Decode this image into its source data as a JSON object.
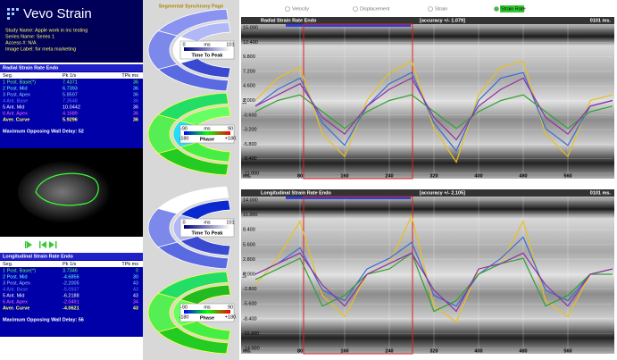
{
  "logo": "Vevo Strain",
  "study_info": [
    "Study Name: Apple work in inc testing",
    "Series Name: Series 1",
    "Access #: N/A",
    "Image Label: for meta marketing"
  ],
  "tables": [
    {
      "title": "Radial Strain Rate Endo",
      "header": [
        "Seg.",
        "Pk 1/s",
        "TPk ms"
      ],
      "rows": [
        [
          "1 Post. Base(*)",
          7.4371,
          36
        ],
        [
          "2 Post. Mid",
          6.7393,
          36
        ],
        [
          "3 Post. Apex",
          5.8597,
          36
        ],
        [
          "4 Ant. Base",
          7.3548,
          36
        ],
        [
          "5 Ant. Mid",
          10.0442,
          36
        ],
        [
          "6 Ant. Apex",
          4.1689,
          36
        ],
        [
          "Aver. Curve",
          5.9296,
          36
        ]
      ],
      "row_colors": [
        "#66ff66",
        "#66ffff",
        "#99ccff",
        "#6677ff",
        "#ffffff",
        "#ff66ff",
        "#ffff66"
      ],
      "footer": "Maximum Opposing Wall Delay: 52"
    },
    {
      "title": "Longitudinal Strain Rate Endo",
      "header": [
        "Seg.",
        "Pk 1/s",
        "TPk ms"
      ],
      "rows": [
        [
          "1 Post. Base(*)",
          3.7346,
          0
        ],
        [
          "2 Post. Mid",
          -4.6856,
          30
        ],
        [
          "3 Post. Apex",
          -2.2005,
          43
        ],
        [
          "4 Ant. Base",
          -5.0937,
          43
        ],
        [
          "5 Ant. Mid",
          -6.2188,
          43
        ],
        [
          "6 Ant. Apex",
          -2.0491,
          34
        ],
        [
          "Aver. Curve",
          -4.0621,
          43
        ]
      ],
      "row_colors": [
        "#66ff66",
        "#66ffff",
        "#99ccff",
        "#6677ff",
        "#ffffff",
        "#ff66ff",
        "#ffff66"
      ],
      "footer": "Maximum Opposing Wall Delay: 56"
    }
  ],
  "synchrony": {
    "title": "Segmental Synchrony Page",
    "diagrams": [
      {
        "scale": [
          "0",
          "ms",
          "101"
        ],
        "caption": "Time To Peak"
      },
      {
        "scale": [
          "-90",
          "ms",
          "90"
        ],
        "scale_bottom": [
          "-180",
          "+180"
        ],
        "caption": "Phase"
      },
      {
        "scale": [
          "0",
          "ms",
          "101"
        ],
        "caption": "Time To Peak"
      },
      {
        "scale": [
          "-90",
          "ms",
          "90"
        ],
        "scale_bottom": [
          "-180",
          "+180"
        ],
        "caption": "Phase"
      }
    ]
  },
  "mode_options": [
    "Velocity",
    "Displacement",
    "Strain",
    "Strain Rate"
  ],
  "selected_mode": 3,
  "plots": [
    {
      "title": "Radial Strain Rate Endo",
      "accuracy": "[accuracy +/- 1.079]",
      "time": "0101 ms.",
      "y_unit": "1/s",
      "x_unit": "ms.",
      "xlim": [
        0,
        640
      ],
      "xticks": [
        80,
        160,
        240,
        320,
        400,
        480,
        560
      ],
      "ylim": [
        -11,
        15
      ],
      "yticks": [
        {
          "value": 15,
          "label": "15.000"
        },
        {
          "value": 12.4,
          "label": "12.400"
        },
        {
          "value": 9.8,
          "label": "9.800"
        },
        {
          "value": 7.2,
          "label": "7.200"
        },
        {
          "value": 4.6,
          "label": "4.600"
        },
        {
          "value": 2,
          "label": "2.000"
        },
        {
          "value": -0.6,
          "label": "-0.600"
        },
        {
          "value": -3.2,
          "label": "-3.200"
        },
        {
          "value": -5.8,
          "label": "-5.800"
        },
        {
          "value": -8.4,
          "label": "-8.400"
        },
        {
          "value": -11,
          "label": "-11.000"
        }
      ],
      "x": [
        0,
        40,
        80,
        120,
        160,
        200,
        240,
        280,
        320,
        360,
        400,
        440,
        480,
        520,
        560,
        600,
        640
      ],
      "series": [
        {
          "color": "#e8c020",
          "values": [
            2,
            6,
            8,
            -4,
            -8,
            2,
            7,
            9,
            -3,
            -9,
            3,
            8,
            9,
            -4,
            -8,
            2,
            3
          ]
        },
        {
          "color": "#3a6ad8",
          "values": [
            1,
            4,
            6,
            -2,
            -6,
            1,
            5,
            7,
            -2,
            -7,
            2,
            6,
            7,
            -3,
            -6,
            1,
            2
          ]
        },
        {
          "color": "#30a030",
          "values": [
            0,
            2,
            3,
            0,
            -3,
            0,
            2,
            3,
            0,
            -3,
            0,
            2,
            3,
            0,
            -3,
            0,
            1
          ]
        },
        {
          "color": "#9030a0",
          "values": [
            1,
            3,
            5,
            -1,
            -4,
            1,
            4,
            6,
            -1,
            -5,
            1,
            4,
            6,
            -1,
            -4,
            1,
            2
          ]
        }
      ]
    },
    {
      "title": "Longitudinal Strain Rate Endo",
      "accuracy": "[accuracy +/- 2.105]",
      "time": "0101 ms.",
      "y_unit": "1/s",
      "x_unit": "ms.",
      "xlim": [
        0,
        640
      ],
      "xticks": [
        80,
        160,
        240,
        320,
        400,
        480,
        560
      ],
      "ylim": [
        -14,
        14
      ],
      "yticks": [
        {
          "value": 14,
          "label": "14.000"
        },
        {
          "value": 11.2,
          "label": "11.200"
        },
        {
          "value": 8.4,
          "label": "8.400"
        },
        {
          "value": 5.6,
          "label": "5.600"
        },
        {
          "value": 2.8,
          "label": "2.800"
        },
        {
          "value": 0,
          "label": "0.000"
        },
        {
          "value": -2.8,
          "label": "-2.800"
        },
        {
          "value": -5.6,
          "label": "-5.600"
        },
        {
          "value": -8.4,
          "label": "-8.400"
        },
        {
          "value": -11.2,
          "label": "-11.200"
        },
        {
          "value": -14,
          "label": "-14.000"
        }
      ],
      "x": [
        0,
        40,
        80,
        120,
        160,
        200,
        240,
        280,
        320,
        360,
        400,
        440,
        480,
        520,
        560,
        600,
        640
      ],
      "series": [
        {
          "color": "#e8c020",
          "values": [
            -2,
            3,
            10,
            -4,
            -8,
            0,
            2,
            11,
            -6,
            -9,
            1,
            2,
            10,
            -5,
            -8,
            0,
            1
          ]
        },
        {
          "color": "#3a6ad8",
          "values": [
            0,
            2,
            5,
            -3,
            -5,
            1,
            3,
            6,
            -4,
            -6,
            0,
            3,
            7,
            -3,
            -5,
            0,
            1
          ]
        },
        {
          "color": "#30a030",
          "values": [
            -1,
            1,
            3,
            -6,
            -4,
            0,
            1,
            4,
            -7,
            -5,
            0,
            2,
            3,
            -6,
            -4,
            0,
            0
          ]
        },
        {
          "color": "#9030a0",
          "values": [
            0,
            2,
            4,
            -2,
            -6,
            0,
            2,
            4,
            -3,
            -7,
            1,
            2,
            4,
            -2,
            -6,
            0,
            1
          ]
        }
      ]
    }
  ]
}
